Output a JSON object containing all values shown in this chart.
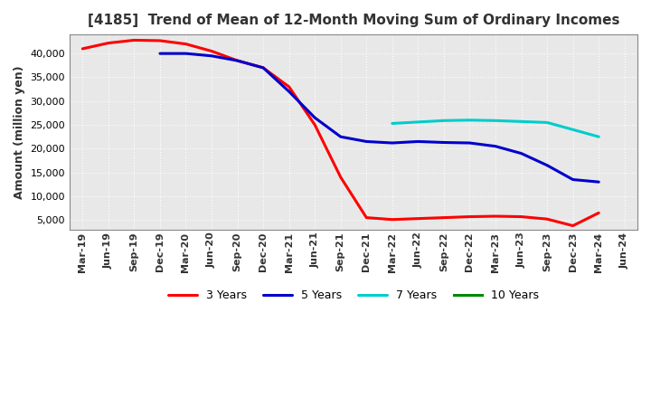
{
  "title": "[4185]  Trend of Mean of 12-Month Moving Sum of Ordinary Incomes",
  "ylabel": "Amount (million yen)",
  "background_color": "#ffffff",
  "plot_bg_color": "#e8e8e8",
  "grid_color": "#ffffff",
  "x_labels": [
    "Mar-19",
    "Jun-19",
    "Sep-19",
    "Dec-19",
    "Mar-20",
    "Jun-20",
    "Sep-20",
    "Dec-20",
    "Mar-21",
    "Jun-21",
    "Sep-21",
    "Dec-21",
    "Mar-22",
    "Jun-22",
    "Sep-22",
    "Dec-22",
    "Mar-23",
    "Jun-23",
    "Sep-23",
    "Dec-23",
    "Mar-24",
    "Jun-24"
  ],
  "series": {
    "3 Years": {
      "color": "#ff0000",
      "values": [
        41000,
        42200,
        42800,
        42700,
        42000,
        40500,
        38500,
        37000,
        33000,
        25000,
        14000,
        5500,
        5100,
        5300,
        5500,
        5700,
        5800,
        5700,
        5200,
        3800,
        6500,
        null
      ]
    },
    "5 Years": {
      "color": "#0000cc",
      "values": [
        null,
        null,
        null,
        40000,
        40000,
        39500,
        38500,
        37000,
        32000,
        26500,
        22500,
        21500,
        21200,
        21500,
        21300,
        21200,
        20500,
        19000,
        16500,
        13500,
        13000,
        null
      ]
    },
    "7 Years": {
      "color": "#00cccc",
      "values": [
        null,
        null,
        null,
        null,
        null,
        null,
        null,
        null,
        null,
        null,
        null,
        null,
        25300,
        25600,
        25900,
        26000,
        25900,
        25700,
        25500,
        24000,
        22500,
        null
      ]
    },
    "10 Years": {
      "color": "#008800",
      "values": [
        null,
        null,
        null,
        null,
        null,
        null,
        null,
        null,
        null,
        null,
        null,
        null,
        null,
        null,
        null,
        null,
        null,
        null,
        null,
        null,
        null,
        null
      ]
    }
  },
  "ylim": [
    3000,
    44000
  ],
  "yticks": [
    5000,
    10000,
    15000,
    20000,
    25000,
    30000,
    35000,
    40000
  ],
  "title_fontsize": 11,
  "legend_fontsize": 9,
  "axis_label_fontsize": 9,
  "tick_fontsize": 8,
  "linewidth": 2.2
}
